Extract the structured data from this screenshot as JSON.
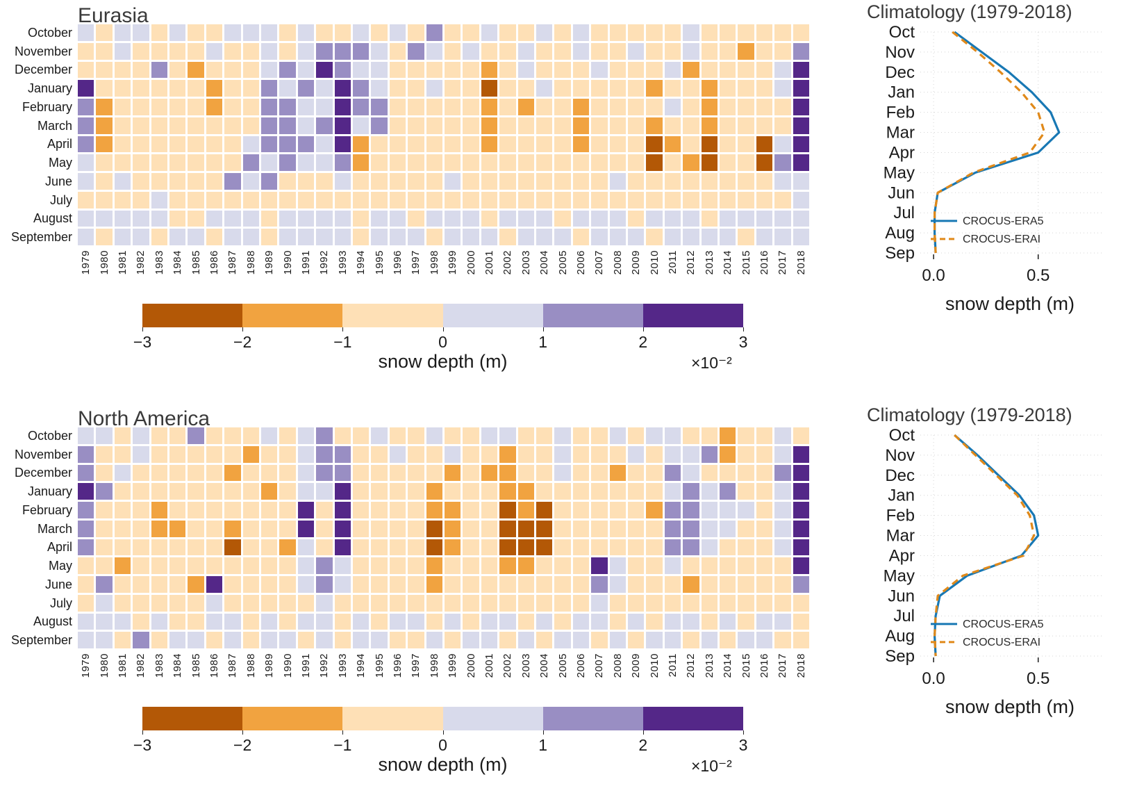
{
  "figure": {
    "colorbar": {
      "ticks": [
        "−3",
        "−2",
        "−1",
        "0",
        "1",
        "2",
        "3"
      ],
      "label": "snow depth (m)",
      "multiplier": "×10⁻²"
    },
    "climatology": {
      "title": "Climatology (1979-2018)",
      "xlabel": "snow depth (m)",
      "xtick_labels": [
        "0.0",
        "0.5"
      ],
      "legend": [
        "CROCUS-ERA5",
        "CROCUS-ERAI"
      ]
    }
  },
  "colors": {
    "bins": {
      "-3": "#b35806",
      "-2": "#f1a340",
      "-1": "#fee0b6",
      "1": "#d8daeb",
      "2": "#998ec3",
      "3": "#542788"
    },
    "era5_line": "#1878b4",
    "erai_line": "#e0891a",
    "grid_line": "#d4d4d4"
  },
  "chart_data": [
    {
      "type": "heatmap",
      "title": "Eurasia",
      "rows": [
        "October",
        "November",
        "December",
        "January",
        "February",
        "March",
        "April",
        "May",
        "June",
        "July",
        "August",
        "September"
      ],
      "columns": [
        "1979",
        "1980",
        "1981",
        "1982",
        "1983",
        "1984",
        "1985",
        "1986",
        "1987",
        "1988",
        "1989",
        "1990",
        "1991",
        "1992",
        "1993",
        "1994",
        "1995",
        "1996",
        "1997",
        "1998",
        "1999",
        "2000",
        "2001",
        "2002",
        "2003",
        "2004",
        "2005",
        "2006",
        "2007",
        "2008",
        "2009",
        "2010",
        "2011",
        "2012",
        "2013",
        "2014",
        "2015",
        "2016",
        "2017",
        "2018"
      ],
      "units": "snow depth anomaly (m) ×10⁻²",
      "bin_edges": [
        -3,
        -2,
        -1,
        0,
        1,
        2,
        3
      ],
      "bin_key": {
        "-3": "[-3,-2)",
        "-2": "[-2,-1)",
        "-1": "[-1,0)",
        "1": "[0,1)",
        "2": "[1,2)",
        "3": "[2,3]"
      },
      "values_bin_level": [
        [
          1,
          -1,
          1,
          1,
          -1,
          1,
          -1,
          -1,
          1,
          1,
          1,
          -1,
          1,
          -1,
          -1,
          1,
          -1,
          1,
          -1,
          2,
          -1,
          -1,
          1,
          -1,
          -1,
          1,
          -1,
          1,
          -1,
          -1,
          -1,
          -1,
          -1,
          1,
          -1,
          -1,
          -1,
          -1,
          -1,
          -1
        ],
        [
          -1,
          -1,
          1,
          -1,
          -1,
          -1,
          -1,
          1,
          -1,
          -1,
          1,
          -1,
          1,
          2,
          2,
          2,
          1,
          -1,
          2,
          1,
          -1,
          1,
          -1,
          -1,
          1,
          -1,
          -1,
          1,
          -1,
          -1,
          1,
          -1,
          -1,
          1,
          -1,
          -1,
          -2,
          -1,
          -1,
          2
        ],
        [
          -1,
          -1,
          -1,
          -1,
          2,
          -1,
          -2,
          -1,
          -1,
          -1,
          1,
          2,
          1,
          3,
          2,
          1,
          1,
          -1,
          -1,
          -1,
          -1,
          -1,
          -2,
          -1,
          1,
          -1,
          -1,
          -1,
          1,
          -1,
          -1,
          -1,
          1,
          -2,
          -1,
          -1,
          -1,
          -1,
          1,
          3
        ],
        [
          3,
          -1,
          -1,
          -1,
          -1,
          -1,
          -1,
          -2,
          -1,
          -1,
          2,
          1,
          2,
          1,
          3,
          2,
          1,
          -1,
          -1,
          1,
          -1,
          -1,
          -3,
          -1,
          -1,
          1,
          -1,
          -1,
          -1,
          -1,
          -1,
          -2,
          -1,
          -1,
          -2,
          -1,
          -1,
          -1,
          1,
          3
        ],
        [
          2,
          -2,
          -1,
          -1,
          -1,
          -1,
          -1,
          -2,
          -1,
          -1,
          2,
          2,
          1,
          1,
          3,
          2,
          2,
          -1,
          -1,
          -1,
          -1,
          -1,
          -2,
          -1,
          -2,
          -1,
          -1,
          -2,
          -1,
          -1,
          -1,
          -1,
          1,
          -1,
          -2,
          -1,
          -1,
          -1,
          -1,
          3
        ],
        [
          2,
          -2,
          -1,
          -1,
          -1,
          -1,
          -1,
          -1,
          -1,
          -1,
          2,
          2,
          1,
          2,
          3,
          1,
          2,
          -1,
          -1,
          -1,
          -1,
          -1,
          -2,
          -1,
          -1,
          -1,
          -1,
          -2,
          -1,
          -1,
          -1,
          -2,
          -1,
          -1,
          -2,
          -1,
          -1,
          -1,
          -1,
          3
        ],
        [
          2,
          -2,
          -1,
          -1,
          -1,
          -1,
          -1,
          -1,
          -1,
          1,
          2,
          2,
          2,
          1,
          3,
          -2,
          -1,
          -1,
          -1,
          -1,
          -1,
          -1,
          -2,
          -1,
          -1,
          -1,
          -1,
          -2,
          -1,
          -1,
          -1,
          -3,
          -2,
          -1,
          -3,
          -1,
          -1,
          -3,
          1,
          3
        ],
        [
          1,
          -1,
          -1,
          -1,
          -1,
          -1,
          -1,
          -1,
          -1,
          2,
          1,
          2,
          1,
          1,
          2,
          -2,
          -1,
          -1,
          -1,
          -1,
          -1,
          -1,
          -1,
          -1,
          -1,
          -1,
          -1,
          -1,
          -1,
          -1,
          -1,
          -3,
          -1,
          -2,
          -3,
          -1,
          -1,
          -3,
          2,
          3
        ],
        [
          1,
          -1,
          1,
          -1,
          -1,
          -1,
          -1,
          -1,
          2,
          1,
          2,
          -1,
          -1,
          -1,
          1,
          -1,
          -1,
          -1,
          -1,
          -1,
          1,
          -1,
          -1,
          -1,
          -1,
          -1,
          -1,
          -1,
          -1,
          1,
          -1,
          -1,
          -1,
          -1,
          -1,
          -1,
          -1,
          -1,
          1,
          1
        ],
        [
          -1,
          -1,
          -1,
          -1,
          1,
          -1,
          -1,
          -1,
          -1,
          -1,
          -1,
          -1,
          -1,
          -1,
          -1,
          -1,
          -1,
          -1,
          -1,
          -1,
          -1,
          -1,
          -1,
          -1,
          -1,
          -1,
          -1,
          -1,
          -1,
          -1,
          -1,
          -1,
          -1,
          -1,
          -1,
          -1,
          -1,
          -1,
          -1,
          1
        ],
        [
          1,
          1,
          1,
          1,
          1,
          -1,
          -1,
          1,
          1,
          1,
          -1,
          1,
          1,
          1,
          1,
          -1,
          1,
          1,
          -1,
          1,
          1,
          1,
          -1,
          1,
          1,
          1,
          -1,
          1,
          1,
          1,
          -1,
          1,
          1,
          1,
          -1,
          1,
          1,
          1,
          1,
          1
        ],
        [
          1,
          -1,
          1,
          1,
          -1,
          1,
          1,
          -1,
          1,
          1,
          -1,
          1,
          1,
          1,
          1,
          -1,
          1,
          1,
          1,
          -1,
          1,
          1,
          1,
          -1,
          1,
          1,
          1,
          -1,
          1,
          1,
          1,
          -1,
          1,
          1,
          1,
          1,
          -1,
          1,
          1,
          1
        ]
      ]
    },
    {
      "type": "line",
      "title": "Climatology (1979-2018)",
      "region": "Eurasia",
      "categories": [
        "Oct",
        "Nov",
        "Dec",
        "Jan",
        "Feb",
        "Mar",
        "Apr",
        "May",
        "Jun",
        "Jul",
        "Aug",
        "Sep"
      ],
      "xlabel": "snow depth (m)",
      "xlim": [
        -0.05,
        0.78
      ],
      "xticks": [
        0.0,
        0.5
      ],
      "xtick_labels": [
        "0.0",
        "0.5"
      ],
      "grid": true,
      "legend_position": "lower right",
      "series": [
        {
          "name": "CROCUS-ERA5",
          "style": "solid",
          "values": [
            0.1,
            0.23,
            0.36,
            0.47,
            0.56,
            0.6,
            0.5,
            0.2,
            0.02,
            0.005,
            0.005,
            0.01
          ]
        },
        {
          "name": "CROCUS-ERAI",
          "style": "dashed",
          "values": [
            0.09,
            0.21,
            0.32,
            0.42,
            0.5,
            0.53,
            0.46,
            0.19,
            0.02,
            0.005,
            0.005,
            0.01
          ]
        }
      ]
    },
    {
      "type": "heatmap",
      "title": "North America",
      "rows": [
        "October",
        "November",
        "December",
        "January",
        "February",
        "March",
        "April",
        "May",
        "June",
        "July",
        "August",
        "September"
      ],
      "columns": [
        "1979",
        "1980",
        "1981",
        "1982",
        "1983",
        "1984",
        "1985",
        "1986",
        "1987",
        "1988",
        "1989",
        "1990",
        "1991",
        "1992",
        "1993",
        "1994",
        "1995",
        "1996",
        "1997",
        "1998",
        "1999",
        "2000",
        "2001",
        "2002",
        "2003",
        "2004",
        "2005",
        "2006",
        "2007",
        "2008",
        "2009",
        "2010",
        "2011",
        "2012",
        "2013",
        "2014",
        "2015",
        "2016",
        "2017",
        "2018"
      ],
      "units": "snow depth anomaly (m) ×10⁻²",
      "bin_edges": [
        -3,
        -2,
        -1,
        0,
        1,
        2,
        3
      ],
      "bin_key": {
        "-3": "[-3,-2)",
        "-2": "[-2,-1)",
        "-1": "[-1,0)",
        "1": "[0,1)",
        "2": "[1,2)",
        "3": "[2,3]"
      },
      "values_bin_level": [
        [
          1,
          1,
          -1,
          1,
          -1,
          -1,
          2,
          -1,
          -1,
          -1,
          1,
          -1,
          1,
          2,
          -1,
          -1,
          1,
          -1,
          -1,
          1,
          -1,
          -1,
          1,
          1,
          -1,
          -1,
          1,
          -1,
          -1,
          1,
          -1,
          1,
          1,
          -1,
          -1,
          -2,
          -1,
          -1,
          1,
          -1
        ],
        [
          2,
          -1,
          -1,
          1,
          -1,
          -1,
          -1,
          -1,
          -1,
          -2,
          -1,
          -1,
          1,
          2,
          2,
          -1,
          -1,
          1,
          -1,
          -1,
          1,
          -1,
          -1,
          -2,
          -1,
          -1,
          1,
          -1,
          -1,
          -1,
          1,
          -1,
          1,
          1,
          2,
          -2,
          -1,
          -1,
          1,
          3
        ],
        [
          2,
          -1,
          1,
          -1,
          -1,
          -1,
          -1,
          -1,
          -2,
          -1,
          -1,
          -1,
          1,
          2,
          2,
          -1,
          -1,
          -1,
          -1,
          -1,
          -2,
          -1,
          -2,
          -2,
          -1,
          -1,
          1,
          -1,
          -1,
          -2,
          -1,
          -1,
          2,
          1,
          -1,
          -1,
          -1,
          -1,
          2,
          3
        ],
        [
          3,
          2,
          -1,
          -1,
          -1,
          -1,
          -1,
          -1,
          -1,
          -1,
          -2,
          -1,
          1,
          1,
          3,
          -1,
          -1,
          -1,
          -1,
          -2,
          -1,
          -1,
          -1,
          -2,
          -2,
          -1,
          -1,
          -1,
          -1,
          -1,
          -1,
          -1,
          1,
          2,
          1,
          2,
          -1,
          -1,
          1,
          3
        ],
        [
          2,
          -1,
          -1,
          -1,
          -2,
          -1,
          -1,
          -1,
          -1,
          -1,
          -1,
          -1,
          3,
          -1,
          3,
          -1,
          -1,
          -1,
          -1,
          -2,
          -2,
          -1,
          -1,
          -3,
          -2,
          -3,
          -1,
          -1,
          -1,
          -1,
          -1,
          -2,
          2,
          2,
          1,
          1,
          1,
          -1,
          1,
          3
        ],
        [
          2,
          -1,
          -1,
          -1,
          -2,
          -2,
          -1,
          -1,
          -2,
          -1,
          -1,
          -1,
          3,
          -1,
          3,
          -1,
          -1,
          -1,
          -1,
          -3,
          -2,
          -1,
          -1,
          -3,
          -3,
          -3,
          -1,
          -1,
          -1,
          -1,
          -1,
          -1,
          2,
          2,
          1,
          1,
          -1,
          -1,
          1,
          3
        ],
        [
          2,
          -1,
          -1,
          -1,
          -1,
          -1,
          -1,
          -1,
          -3,
          -1,
          -1,
          -2,
          1,
          -1,
          3,
          -1,
          -1,
          -1,
          -1,
          -3,
          -2,
          -1,
          -1,
          -3,
          -3,
          -3,
          -1,
          -1,
          -1,
          -1,
          -1,
          -1,
          2,
          2,
          1,
          -1,
          -1,
          -1,
          1,
          3
        ],
        [
          -1,
          -1,
          -2,
          -1,
          -1,
          -1,
          -1,
          -1,
          -1,
          -1,
          -1,
          -1,
          1,
          2,
          1,
          -1,
          -1,
          -1,
          -1,
          -2,
          -1,
          -1,
          -1,
          -2,
          -2,
          -1,
          -1,
          -1,
          3,
          1,
          -1,
          -1,
          1,
          -1,
          -1,
          -1,
          -1,
          -1,
          -1,
          3
        ],
        [
          -1,
          2,
          -1,
          -1,
          -1,
          -1,
          -2,
          3,
          -1,
          -1,
          -1,
          -1,
          1,
          2,
          1,
          -1,
          -1,
          -1,
          -1,
          -2,
          -1,
          -1,
          -1,
          -1,
          -1,
          -1,
          -1,
          -1,
          2,
          1,
          -1,
          -1,
          -1,
          -2,
          -1,
          -1,
          -1,
          -1,
          -1,
          2
        ],
        [
          -1,
          1,
          -1,
          -1,
          -1,
          -1,
          -1,
          1,
          -1,
          -1,
          -1,
          -1,
          -1,
          1,
          -1,
          -1,
          -1,
          -1,
          -1,
          -1,
          -1,
          -1,
          -1,
          -1,
          -1,
          -1,
          -1,
          -1,
          1,
          -1,
          -1,
          -1,
          -1,
          -1,
          -1,
          -1,
          -1,
          -1,
          -1,
          -1
        ],
        [
          1,
          1,
          1,
          -1,
          1,
          -1,
          -1,
          1,
          1,
          -1,
          1,
          -1,
          1,
          1,
          -1,
          1,
          -1,
          1,
          1,
          -1,
          1,
          -1,
          1,
          1,
          -1,
          1,
          -1,
          1,
          1,
          -1,
          1,
          -1,
          1,
          1,
          -1,
          1,
          -1,
          1,
          1,
          -1
        ],
        [
          1,
          1,
          -1,
          2,
          -1,
          1,
          1,
          -1,
          1,
          -1,
          1,
          1,
          -1,
          1,
          -1,
          1,
          1,
          -1,
          -1,
          1,
          -1,
          1,
          1,
          -1,
          1,
          -1,
          1,
          1,
          -1,
          1,
          -1,
          1,
          1,
          -1,
          1,
          -1,
          1,
          1,
          -1,
          -1
        ]
      ]
    },
    {
      "type": "line",
      "title": "Climatology (1979-2018)",
      "region": "North America",
      "categories": [
        "Oct",
        "Nov",
        "Dec",
        "Jan",
        "Feb",
        "Mar",
        "Apr",
        "May",
        "Jun",
        "Jul",
        "Aug",
        "Sep"
      ],
      "xlabel": "snow depth (m)",
      "xlim": [
        -0.05,
        0.78
      ],
      "xticks": [
        0.0,
        0.5
      ],
      "xtick_labels": [
        "0.0",
        "0.5"
      ],
      "grid": true,
      "legend_position": "lower right",
      "series": [
        {
          "name": "CROCUS-ERA5",
          "style": "solid",
          "values": [
            0.1,
            0.21,
            0.31,
            0.41,
            0.48,
            0.5,
            0.42,
            0.16,
            0.03,
            0.01,
            0.005,
            0.01
          ]
        },
        {
          "name": "CROCUS-ERAI",
          "style": "dashed",
          "values": [
            0.1,
            0.2,
            0.3,
            0.4,
            0.46,
            0.48,
            0.43,
            0.14,
            0.02,
            0.01,
            0.005,
            0.01
          ]
        }
      ]
    }
  ]
}
